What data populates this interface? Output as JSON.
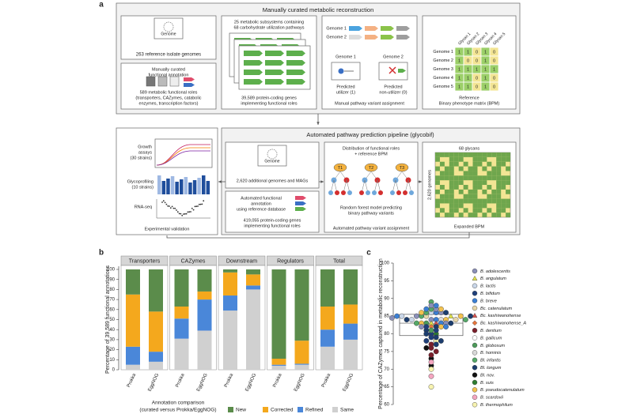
{
  "panel_labels": [
    "a",
    "b",
    "c"
  ],
  "diagram": {
    "manual": {
      "title": "Manually curated metabolic reconstruction",
      "genome_icon": "Genome",
      "reference_genomes": "263 reference isolate genomes",
      "annotation": [
        "Manually curated",
        "functional annotation"
      ],
      "roles": [
        "589 metabolic functional roles",
        "(transporters, CAZymes, catabolic",
        "enzymes, transcription factors)"
      ],
      "subsystems": [
        "25 metabolic subsystems containing",
        "68 carbohydrate utilization pathways"
      ],
      "genes": [
        "39,589 protein-coding genes",
        "implementing functional roles"
      ],
      "variant": {
        "genomes": [
          "Genome 1",
          "Genome 2"
        ],
        "cases": [
          {
            "genome": "Genome 1",
            "label": [
              "Predicted",
              "utilizer (1)"
            ]
          },
          {
            "genome": "Genome 2",
            "label": [
              "Predicted",
              "non-utilizer (0)"
            ]
          }
        ],
        "caption": "Manual pathway variant assignment"
      },
      "bpm": {
        "columns": [
          "Glycan 1",
          "Glycan 2",
          "Glycan 3",
          "Glycan 4",
          "Glycan 5"
        ],
        "rows": [
          {
            "genome": "Genome 1",
            "cells": [
              1,
              1,
              0,
              1,
              0
            ]
          },
          {
            "genome": "Genome 2",
            "cells": [
              1,
              0,
              0,
              1,
              0
            ]
          },
          {
            "genome": "Genome 3",
            "cells": [
              1,
              1,
              1,
              1,
              1
            ]
          },
          {
            "genome": "Genome 4",
            "cells": [
              1,
              1,
              0,
              1,
              0
            ]
          },
          {
            "genome": "Genome 5",
            "cells": [
              1,
              1,
              0,
              1,
              0
            ]
          }
        ],
        "caption": [
          "Reference",
          "Binary phenotype matrix (BPM)"
        ]
      }
    },
    "validation": {
      "items": [
        [
          "Growth",
          "assays",
          "(30 strains)"
        ],
        [
          "Glycoprofiling",
          "(10 strains)"
        ],
        [
          "RNA-seq"
        ]
      ],
      "caption": "Experimental validation"
    },
    "automated": {
      "title": "Automated pathway prediction pipeline (glycobif)",
      "genome_icon": "Genome",
      "additional": "2,620 additional genomes and MAGs",
      "annotation": [
        "Automated functional",
        "annotation",
        "using reference database"
      ],
      "genes": [
        "419,055 protein-coding genes",
        "implementing functional roles"
      ],
      "distribution": [
        "Distribution of functional roles",
        "+ reference BPM"
      ],
      "trees": [
        "T1",
        "T2",
        "T3"
      ],
      "model": [
        "Random forest model predicting",
        "binary pathway variants"
      ],
      "caption": "Automated pathway variant assignment",
      "glycans": "68 glycans",
      "genomes": "2,620 genomes",
      "expanded": "Expanded BPM"
    }
  },
  "chart_data": [
    {
      "type": "bar",
      "stacked": true,
      "facets": [
        "Transporters",
        "CAZymes",
        "Downstream",
        "Regulators",
        "Total"
      ],
      "categories": [
        "Prokka",
        "EggNOG",
        "Prokka",
        "EggNOG",
        "Prokka",
        "EggNOG",
        "Prokka",
        "EggNOG",
        "Prokka",
        "EggNOG"
      ],
      "ylabel": "Percentage of 39,589 functional annotations",
      "xlabel": [
        "Annotation comparison",
        "(curated versus Prokka/EggNOG)"
      ],
      "ylim": [
        0,
        100
      ],
      "yticks": [
        0,
        10,
        20,
        30,
        40,
        50,
        60,
        70,
        80,
        90,
        100
      ],
      "series": [
        {
          "name": "New",
          "color": "#5b8c4b",
          "values": [
            25,
            42,
            37,
            22,
            3,
            5,
            89,
            71,
            37,
            35
          ]
        },
        {
          "name": "Corrected",
          "color": "#f4a81d",
          "values": [
            52,
            40,
            12,
            8,
            23,
            11,
            6,
            23,
            23,
            19
          ]
        },
        {
          "name": "Refined",
          "color": "#4a87d9",
          "values": [
            18,
            10,
            20,
            31,
            15,
            4,
            1,
            1,
            17,
            16
          ]
        },
        {
          "name": "Same",
          "color": "#d0d0d0",
          "values": [
            5,
            8,
            31,
            39,
            59,
            80,
            4,
            5,
            23,
            30
          ]
        }
      ]
    },
    {
      "type": "box",
      "ylabel": "Percentage of CAZymes captured in metabolic reconstruction",
      "ylim": [
        60,
        100
      ],
      "yticks": [
        60,
        65,
        70,
        75,
        80,
        85,
        90,
        95,
        100
      ],
      "box": {
        "q1": 79.5,
        "median": 83,
        "q3": 85.5
      },
      "series": [
        {
          "name": "B. adolescentis",
          "color": "#8a8fb8",
          "shape": "circle",
          "values": [
            84,
            85,
            86,
            83,
            87,
            82,
            88,
            84.5
          ]
        },
        {
          "name": "B. angulatum",
          "color": "#e1e34a",
          "shape": "triangle",
          "values": [
            83,
            85
          ]
        },
        {
          "name": "B. lactis",
          "color": "#c9d6e8",
          "shape": "circle",
          "values": [
            86,
            84,
            85
          ]
        },
        {
          "name": "B. bifidum",
          "color": "#1f3f7a",
          "shape": "circle",
          "values": [
            80,
            79,
            81,
            78,
            82
          ]
        },
        {
          "name": "B. breve",
          "color": "#3b7fd4",
          "shape": "circle",
          "values": [
            84,
            86,
            83,
            85,
            87,
            82,
            88
          ]
        },
        {
          "name": "Bc. catenulatum",
          "color": "#e7d6a8",
          "shape": "circle",
          "values": [
            85,
            84
          ]
        },
        {
          "name": "Bc. kashiwanohense",
          "color": "#d9534f",
          "shape": "triangle",
          "values": [
            83
          ]
        },
        {
          "name": "Bc. kashiwanohense_A",
          "color": "#e8743b",
          "shape": "diamond",
          "values": [
            82
          ]
        },
        {
          "name": "B. dentium",
          "color": "#7a1f2b",
          "shape": "circle",
          "values": [
            76,
            75,
            77,
            74
          ]
        },
        {
          "name": "B. gallicum",
          "color": "#ffffff",
          "shape": "circle",
          "values": [
            78
          ]
        },
        {
          "name": "B. globosum",
          "color": "#4c9a5a",
          "shape": "circle",
          "values": [
            81,
            83
          ]
        },
        {
          "name": "B. hominis",
          "color": "#d9d9d9",
          "shape": "circle",
          "values": [
            84
          ]
        },
        {
          "name": "Bl. infantis",
          "color": "#55a868",
          "shape": "circle",
          "values": [
            85,
            86,
            84,
            87,
            83,
            89
          ]
        },
        {
          "name": "Bl. longum",
          "color": "#1c3d6e",
          "shape": "circle",
          "values": [
            82,
            84,
            81,
            80,
            83,
            85,
            79,
            78,
            86,
            77
          ]
        },
        {
          "name": "Bl. nov.",
          "color": "#111111",
          "shape": "circle",
          "values": [
            71,
            73,
            76
          ]
        },
        {
          "name": "B. suis",
          "color": "#2e7d32",
          "shape": "circle",
          "values": [
            80
          ]
        },
        {
          "name": "B. pseudocatenulatum",
          "color": "#f2c14e",
          "shape": "circle",
          "values": [
            84,
            85,
            83,
            86,
            82,
            87
          ]
        },
        {
          "name": "B. scardovii",
          "color": "#f4a6c0",
          "shape": "circle",
          "values": [
            68,
            72
          ]
        },
        {
          "name": "B. thermophilum",
          "color": "#f7f3b0",
          "shape": "circle",
          "values": [
            65,
            70,
            78
          ]
        }
      ]
    }
  ]
}
